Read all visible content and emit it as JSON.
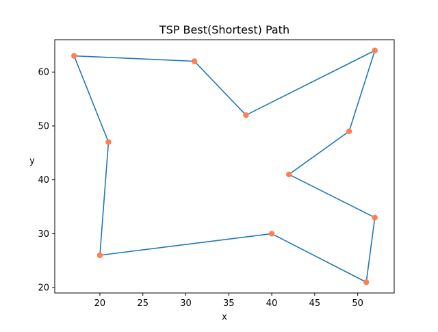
{
  "chart_data": {
    "type": "line",
    "title": "TSP Best(Shortest) Path",
    "xlabel": "x",
    "ylabel": "y",
    "xlim": [
      14.75,
      54.25
    ],
    "ylim": [
      19.0,
      66.0
    ],
    "xticks": [
      20,
      25,
      30,
      35,
      40,
      45,
      50
    ],
    "yticks": [
      20,
      30,
      40,
      50,
      60
    ],
    "grid": false,
    "legend": "none",
    "path_color": "#1f77b4",
    "point_color": "#ff7f50",
    "series": [
      {
        "mode": "line",
        "x": [
          17,
          21,
          20,
          40,
          51,
          52,
          42,
          49,
          52,
          37,
          31,
          17
        ],
        "y": [
          63,
          47,
          26,
          30,
          21,
          33,
          41,
          49,
          64,
          52,
          62,
          63
        ]
      },
      {
        "mode": "scatter",
        "x": [
          17,
          31,
          37,
          52,
          49,
          42,
          52,
          51,
          40,
          20,
          21
        ],
        "y": [
          63,
          62,
          52,
          64,
          49,
          41,
          33,
          21,
          30,
          26,
          47
        ]
      }
    ]
  }
}
